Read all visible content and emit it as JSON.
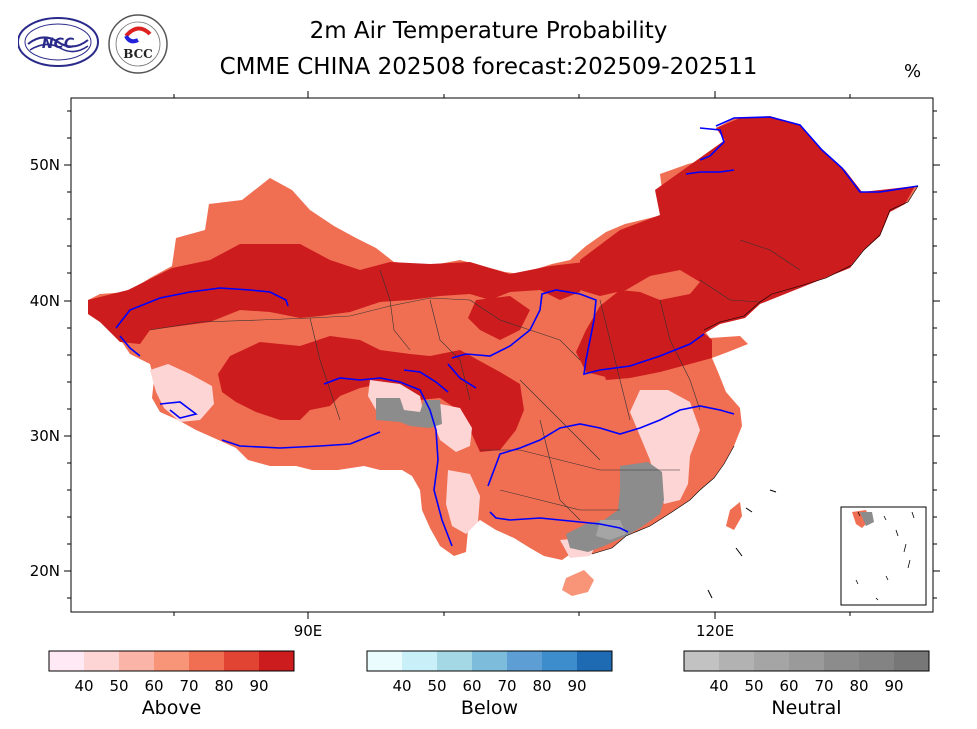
{
  "title": {
    "line1": "2m Air Temperature Probability",
    "line2": "CMME CHINA 202508 forecast:202509-202511",
    "unit": "%"
  },
  "logos": [
    {
      "name": "ncc-logo",
      "text": "NCC"
    },
    {
      "name": "bcc-logo",
      "text": "BCC"
    }
  ],
  "axes": {
    "lat_labels": [
      "50N",
      "40N",
      "30N",
      "20N"
    ],
    "lon_labels": [
      "90E",
      "120E"
    ]
  },
  "colorbars": [
    {
      "name": "Above",
      "ticks": [
        "40",
        "50",
        "60",
        "70",
        "80",
        "90"
      ],
      "colors": [
        "#fee9f4",
        "#fdd5d5",
        "#fbb4a8",
        "#f89578",
        "#f06e52",
        "#e14433",
        "#cc1c1e"
      ]
    },
    {
      "name": "Below",
      "ticks": [
        "40",
        "50",
        "60",
        "70",
        "80",
        "90"
      ],
      "colors": [
        "#eafcfe",
        "#c9eff8",
        "#a5d8e5",
        "#7dbcdb",
        "#5d9fd5",
        "#3d8ccb",
        "#1f6bb3"
      ]
    },
    {
      "name": "Neutral",
      "ticks": [
        "40",
        "50",
        "60",
        "70",
        "80",
        "90"
      ],
      "colors": [
        "#c2c2c2",
        "#b2b2b2",
        "#a5a5a5",
        "#9a9a9a",
        "#8c8c8c",
        "#838383",
        "#777777"
      ]
    }
  ],
  "colors": {
    "river": "#0000ff",
    "neutral_region": "#8c8c8c"
  }
}
